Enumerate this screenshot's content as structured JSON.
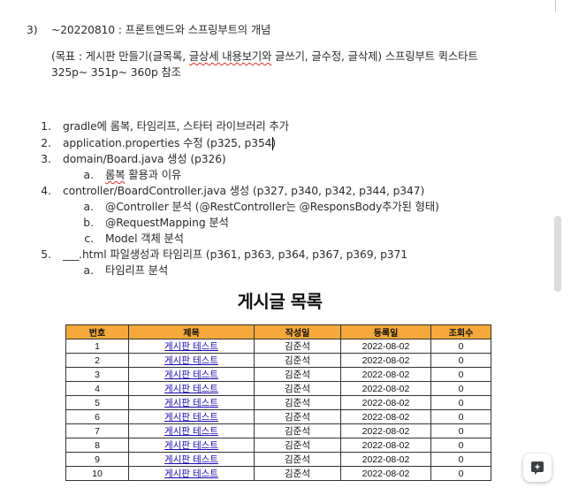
{
  "section": {
    "number": "3)",
    "title": "~20220810 : 프론트엔드와 스프링부트의 개념"
  },
  "goal": {
    "line1_before": "(목표 : 게시판 만들기(글목록, ",
    "line1_underlined": "글상세 내용보기와",
    "line1_after": " 글쓰기, 글수정, 글삭제) 스프링부트 퀵스타트",
    "line2": "325p~ 351p~ 360p 참조"
  },
  "steps": [
    {
      "num": "1.",
      "text": "gradle에 롬복, 타임리프, 스타터 라이브러리 추가"
    },
    {
      "num": "2.",
      "text": "application.properties 수정 (p325, p354)"
    },
    {
      "num": "3.",
      "text": "domain/Board.java 생성 (p326)"
    },
    {
      "num": "4.",
      "text": "controller/BoardController.java 생성 (p327, p340, p342, p344, p347)"
    },
    {
      "num": "5.",
      "text": "___.html 파일생성과 타임리프 (p361, p363, p364, p367, p369, p371"
    }
  ],
  "substeps": {
    "step3_a": {
      "letter": "a.",
      "underlined": "롬복",
      "rest": " 활용과 이유"
    },
    "step4_a": {
      "letter": "a.",
      "before": "@Controller 분석 (",
      "underlined": "@RestController는",
      "after": " @ResponsBody추가된 형태)"
    },
    "step4_b": {
      "letter": "b.",
      "text": "@RequestMapping 분석"
    },
    "step4_c": {
      "letter": "c.",
      "text": "Model 객체 분석"
    },
    "step5_a": {
      "letter": "a.",
      "text": "타임리프 분석"
    }
  },
  "board": {
    "heading": "게시글 목록",
    "columns": [
      "번호",
      "제목",
      "작성일",
      "등록일",
      "조회수"
    ],
    "rows": [
      {
        "no": "1",
        "title": "게시판 테스트",
        "writer": "김준석",
        "date": "2022-08-02",
        "views": "0"
      },
      {
        "no": "2",
        "title": "게시판 테스트",
        "writer": "김준석",
        "date": "2022-08-02",
        "views": "0"
      },
      {
        "no": "3",
        "title": "게시판 테스트",
        "writer": "김준석",
        "date": "2022-08-02",
        "views": "0"
      },
      {
        "no": "4",
        "title": "게시판 테스트",
        "writer": "김준석",
        "date": "2022-08-02",
        "views": "0"
      },
      {
        "no": "5",
        "title": "게시판 테스트",
        "writer": "김준석",
        "date": "2022-08-02",
        "views": "0"
      },
      {
        "no": "6",
        "title": "게시판 테스트",
        "writer": "김준석",
        "date": "2022-08-02",
        "views": "0"
      },
      {
        "no": "7",
        "title": "게시판 테스트",
        "writer": "김준석",
        "date": "2022-08-02",
        "views": "0"
      },
      {
        "no": "8",
        "title": "게시판 테스트",
        "writer": "김준석",
        "date": "2022-08-02",
        "views": "0"
      },
      {
        "no": "9",
        "title": "게시판 테스트",
        "writer": "김준석",
        "date": "2022-08-02",
        "views": "0"
      },
      {
        "no": "10",
        "title": "게시판 테스트",
        "writer": "김준석",
        "date": "2022-08-02",
        "views": "0"
      }
    ]
  },
  "fab": {
    "icon": "sparkle-plus-icon"
  },
  "colors": {
    "header_bg": "#f4a93a",
    "link": "#1a0dab",
    "squiggle": "#d93025"
  }
}
